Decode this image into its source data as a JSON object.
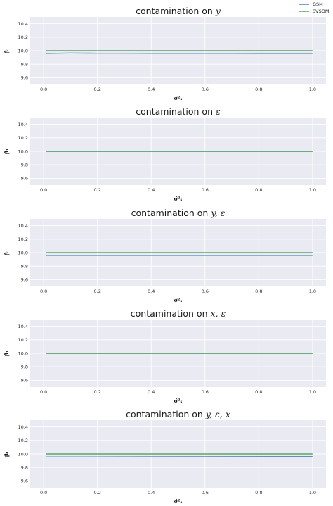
{
  "legend": {
    "entries": [
      {
        "label": "GSM",
        "color": "#3c6bb0"
      },
      {
        "label": "SVSOM",
        "color": "#3a9a48"
      }
    ],
    "placement": "top-right"
  },
  "chart_data": [
    {
      "type": "line",
      "title_prefix": "contamination on ",
      "title_math": "y",
      "xlabel": "σ̂²ₛ",
      "ylabel": "β̂₁",
      "xlim": [
        -0.05,
        1.05
      ],
      "ylim": [
        9.5,
        10.5
      ],
      "xticks": [
        "0.0",
        "0.2",
        "0.4",
        "0.6",
        "0.8",
        "1.0"
      ],
      "yticks": [
        "9.6",
        "9.8",
        "10.0",
        "10.2",
        "10.4"
      ],
      "grid": true,
      "series": [
        {
          "name": "GSM",
          "x": [
            0.01,
            0.1,
            0.2,
            0.3,
            0.4,
            0.5,
            0.6,
            0.7,
            0.8,
            0.9,
            1.0
          ],
          "y": [
            9.96,
            9.965,
            9.962,
            9.962,
            9.961,
            9.961,
            9.961,
            9.961,
            9.96,
            9.96,
            9.96
          ]
        },
        {
          "name": "SVSOM",
          "x": [
            0.01,
            1.0
          ],
          "y": [
            10.0,
            10.0
          ]
        }
      ]
    },
    {
      "type": "line",
      "title_prefix": "contamination on ",
      "title_math": "ε",
      "xlabel": "σ̂²ₛ",
      "ylabel": "β̂₁",
      "xlim": [
        -0.05,
        1.05
      ],
      "ylim": [
        9.5,
        10.5
      ],
      "xticks": [
        "0.0",
        "0.2",
        "0.4",
        "0.6",
        "0.8",
        "1.0"
      ],
      "yticks": [
        "9.6",
        "9.8",
        "10.0",
        "10.2",
        "10.4"
      ],
      "grid": true,
      "series": [
        {
          "name": "GSM",
          "x": [
            0.01,
            1.0
          ],
          "y": [
            10.0,
            10.0
          ]
        },
        {
          "name": "SVSOM",
          "x": [
            0.01,
            1.0
          ],
          "y": [
            10.0,
            10.0
          ]
        }
      ]
    },
    {
      "type": "line",
      "title_prefix": "contamination on ",
      "title_math": "y, ε",
      "xlabel": "σ̂²ₛ",
      "ylabel": "β̂₁",
      "xlim": [
        -0.05,
        1.05
      ],
      "ylim": [
        9.5,
        10.5
      ],
      "xticks": [
        "0.0",
        "0.2",
        "0.4",
        "0.6",
        "0.8",
        "1.0"
      ],
      "yticks": [
        "9.6",
        "9.8",
        "10.0",
        "10.2",
        "10.4"
      ],
      "grid": true,
      "series": [
        {
          "name": "GSM",
          "x": [
            0.01,
            1.0
          ],
          "y": [
            9.96,
            9.96
          ]
        },
        {
          "name": "SVSOM",
          "x": [
            0.01,
            1.0
          ],
          "y": [
            10.0,
            10.0
          ]
        }
      ]
    },
    {
      "type": "line",
      "title_prefix": "contamination on ",
      "title_math": "x, ε",
      "xlabel": "σ̂²ₛ",
      "ylabel": "β̂₁",
      "xlim": [
        -0.05,
        1.05
      ],
      "ylim": [
        9.5,
        10.5
      ],
      "xticks": [
        "0.0",
        "0.2",
        "0.4",
        "0.6",
        "0.8",
        "1.0"
      ],
      "yticks": [
        "9.6",
        "9.8",
        "10.0",
        "10.2",
        "10.4"
      ],
      "grid": true,
      "series": [
        {
          "name": "GSM",
          "x": [
            0.01,
            1.0
          ],
          "y": [
            10.0,
            10.0
          ]
        },
        {
          "name": "SVSOM",
          "x": [
            0.01,
            1.0
          ],
          "y": [
            10.0,
            10.0
          ]
        }
      ]
    },
    {
      "type": "line",
      "title_prefix": "contamination on ",
      "title_math": "y, ε, x",
      "xlabel": "σ̂²ₛ",
      "ylabel": "β̂₁",
      "xlim": [
        -0.05,
        1.05
      ],
      "ylim": [
        9.5,
        10.5
      ],
      "xticks": [
        "0.0",
        "0.2",
        "0.4",
        "0.6",
        "0.8",
        "1.0"
      ],
      "yticks": [
        "9.6",
        "9.8",
        "10.0",
        "10.2",
        "10.4"
      ],
      "grid": true,
      "series": [
        {
          "name": "GSM",
          "x": [
            0.01,
            0.3,
            0.6,
            1.0
          ],
          "y": [
            9.955,
            9.957,
            9.958,
            9.96
          ]
        },
        {
          "name": "SVSOM",
          "x": [
            0.01,
            1.0
          ],
          "y": [
            10.0,
            10.0
          ]
        }
      ]
    }
  ]
}
